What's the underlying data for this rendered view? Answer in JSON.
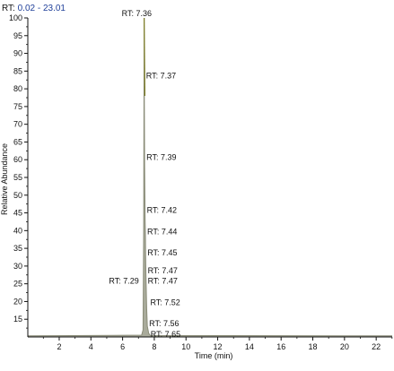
{
  "header": {
    "rt_prefix": "RT: ",
    "rt_range": "0.02 - 23.01"
  },
  "colors": {
    "rt_range": "#1f3f99",
    "peak_fill": "#a9ab9b",
    "peak_line": "#8a8c78",
    "peak_top": "#7d7d23",
    "axis": "#111111"
  },
  "chart_data": {
    "type": "line",
    "title": "",
    "xlabel": "Time (min)",
    "ylabel": "Relative Abundance",
    "xlim": [
      0.02,
      23.01
    ],
    "ylim": [
      10,
      100
    ],
    "x_ticks": [
      2,
      4,
      6,
      8,
      10,
      12,
      14,
      16,
      18,
      20,
      22
    ],
    "y_ticks": [
      15,
      20,
      25,
      30,
      35,
      40,
      45,
      50,
      55,
      60,
      65,
      70,
      75,
      80,
      85,
      90,
      95,
      100
    ],
    "grid": false,
    "legend": "none",
    "series": [
      {
        "x": [
          0.02,
          7.2,
          7.29,
          7.33,
          7.36,
          7.37,
          7.39,
          7.42,
          7.44,
          7.45,
          7.47,
          7.52,
          7.56,
          7.65,
          7.75,
          23.01
        ],
        "y": [
          10.3,
          10.5,
          12.0,
          40.0,
          100.0,
          78.0,
          58.0,
          43.0,
          39.0,
          34.0,
          28.0,
          18.0,
          13.0,
          11.0,
          10.4,
          10.3
        ]
      }
    ],
    "annotations": [
      {
        "text": "RT: 7.36",
        "x": 7.36,
        "y": 100
      },
      {
        "text": "RT: 7.37",
        "x": 7.37,
        "y": 84
      },
      {
        "text": "RT: 7.39",
        "x": 7.39,
        "y": 61
      },
      {
        "text": "RT: 7.42",
        "x": 7.42,
        "y": 46
      },
      {
        "text": "RT: 7.44",
        "x": 7.44,
        "y": 40
      },
      {
        "text": "RT: 7.45",
        "x": 7.45,
        "y": 34
      },
      {
        "text": "RT: 7.47",
        "x": 7.47,
        "y": 29
      },
      {
        "text": "RT: 7.47",
        "x": 7.47,
        "y": 26
      },
      {
        "text": "RT: 7.29",
        "x": 7.29,
        "y": 26
      },
      {
        "text": "RT: 7.52",
        "x": 7.52,
        "y": 20
      },
      {
        "text": "RT: 7.56",
        "x": 7.56,
        "y": 14
      },
      {
        "text": "RT: 7.65",
        "x": 7.65,
        "y": 11
      }
    ]
  }
}
